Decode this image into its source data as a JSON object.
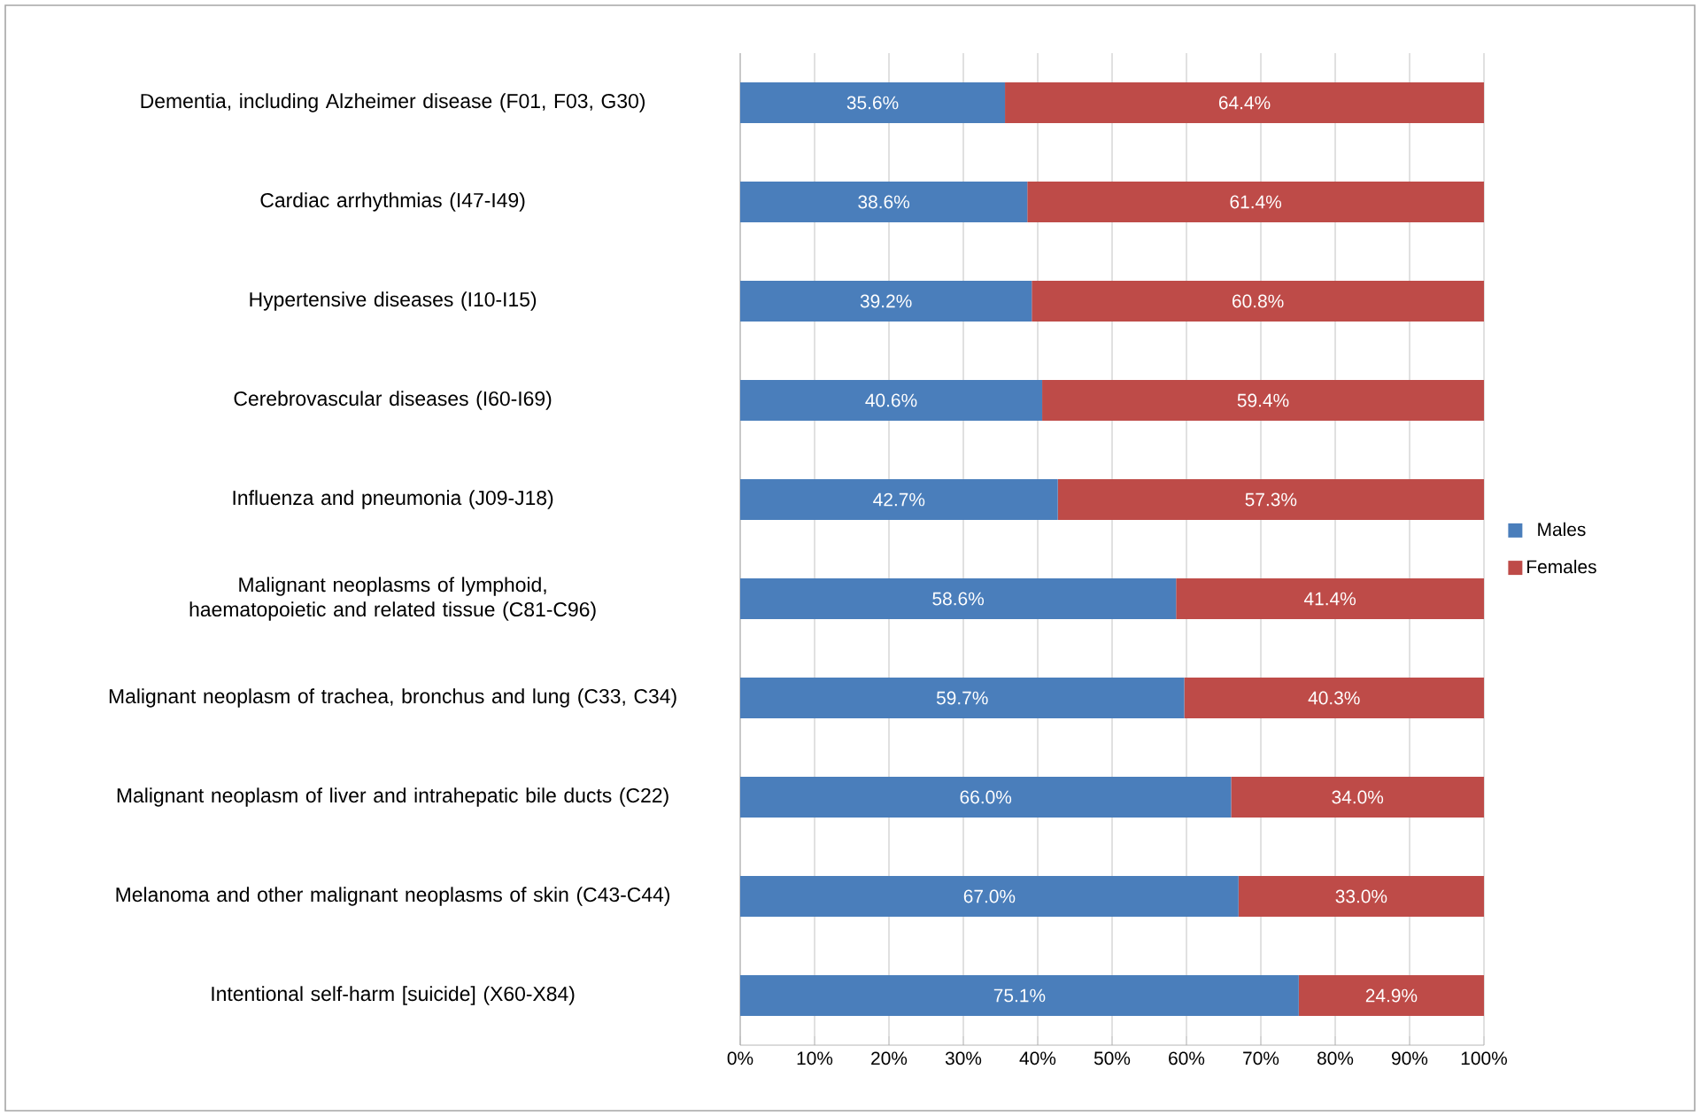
{
  "chart_data": {
    "type": "bar",
    "orientation": "horizontal",
    "stacked": true,
    "categories": [
      "Dementia, including Alzheimer disease (F01, F03, G30)",
      "Cardiac arrhythmias (I47-I49)",
      "Hypertensive diseases (I10-I15)",
      "Cerebrovascular diseases (I60-I69)",
      "Influenza and pneumonia (J09-J18)",
      "Malignant neoplasms of lymphoid, haematopoietic and related tissue (C81-C96)",
      "Malignant neoplasm of trachea, bronchus and lung (C33, C34)",
      "Malignant neoplasm of liver and intrahepatic bile ducts (C22)",
      "Melanoma and other malignant neoplasms of skin  (C43-C44)",
      "Intentional self-harm [suicide] (X60-X84)"
    ],
    "series": [
      {
        "name": "Males",
        "color": "#4a7ebb",
        "values": [
          35.6,
          38.6,
          39.2,
          40.6,
          42.7,
          58.6,
          59.7,
          66.0,
          67.0,
          75.1
        ],
        "value_labels": [
          "35.6%",
          "38.6%",
          "39.2%",
          "40.6%",
          "42.7%",
          "58.6%",
          "59.7%",
          "66.0%",
          "67.0%",
          "75.1%"
        ]
      },
      {
        "name": "Females",
        "color": "#be4b48",
        "values": [
          64.4,
          61.4,
          60.8,
          59.4,
          57.3,
          41.4,
          40.3,
          34.0,
          33.0,
          24.9
        ],
        "value_labels": [
          "64.4%",
          "61.4%",
          "60.8%",
          "59.4%",
          "57.3%",
          "41.4%",
          "40.3%",
          "34.0%",
          "33.0%",
          "24.9%"
        ]
      }
    ],
    "xlim": [
      0,
      100
    ],
    "xticks": [
      {
        "value": 0,
        "label": "0%"
      },
      {
        "value": 10,
        "label": "10%"
      },
      {
        "value": 20,
        "label": "20%"
      },
      {
        "value": 30,
        "label": "30%"
      },
      {
        "value": 40,
        "label": "40%"
      },
      {
        "value": 50,
        "label": "50%"
      },
      {
        "value": 60,
        "label": "60%"
      },
      {
        "value": 70,
        "label": "70%"
      },
      {
        "value": 80,
        "label": "80%"
      },
      {
        "value": 90,
        "label": "90%"
      },
      {
        "value": 100,
        "label": "100%"
      }
    ],
    "grid": "x",
    "legend": "right"
  }
}
